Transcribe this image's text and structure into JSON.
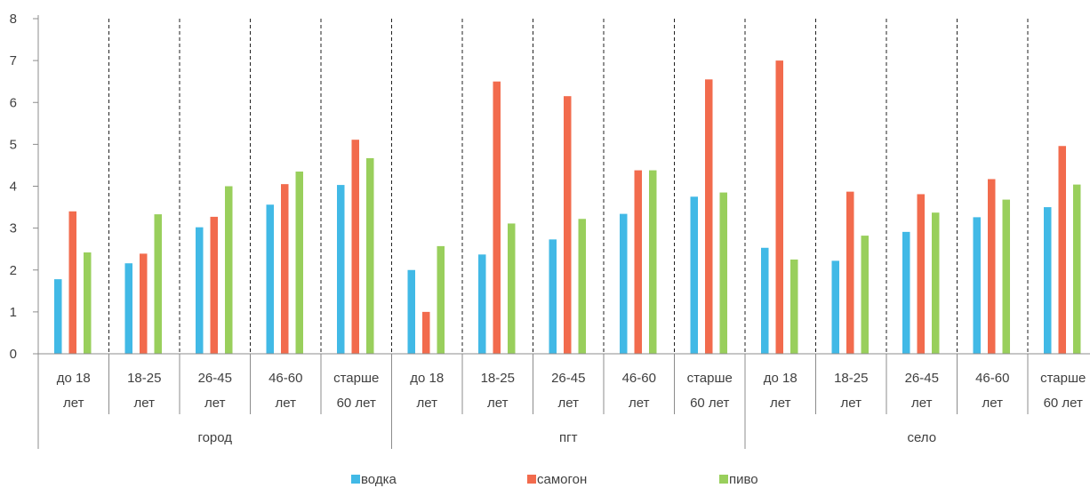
{
  "chart_data": {
    "type": "bar",
    "title": "",
    "xlabel": "",
    "ylabel": "",
    "ylim": [
      0,
      8
    ],
    "yticks": [
      "0",
      "1",
      "2",
      "3",
      "4",
      "5",
      "6",
      "7",
      "8"
    ],
    "grid": false,
    "legend_position": "bottom",
    "groups": [
      {
        "name": "город",
        "categories": [
          [
            "до 18",
            "лет"
          ],
          [
            "18-25",
            "лет"
          ],
          [
            "26-45",
            "лет"
          ],
          [
            "46-60",
            "лет"
          ],
          [
            "старше",
            "60 лет"
          ]
        ]
      },
      {
        "name": "пгт",
        "categories": [
          [
            "до 18",
            "лет"
          ],
          [
            "18-25",
            "лет"
          ],
          [
            "26-45",
            "лет"
          ],
          [
            "46-60",
            "лет"
          ],
          [
            "старше",
            "60 лет"
          ]
        ]
      },
      {
        "name": "село",
        "categories": [
          [
            "до 18",
            "лет"
          ],
          [
            "18-25",
            "лет"
          ],
          [
            "26-45",
            "лет"
          ],
          [
            "46-60",
            "лет"
          ],
          [
            "старше",
            "60 лет"
          ]
        ]
      }
    ],
    "series": [
      {
        "name": "водка",
        "color": "#41b9e6",
        "values": [
          1.78,
          2.16,
          3.02,
          3.56,
          4.03,
          2.0,
          2.37,
          2.73,
          3.34,
          3.75,
          2.53,
          2.22,
          2.91,
          3.26,
          3.5
        ]
      },
      {
        "name": "самогон",
        "color": "#f26b4d",
        "values": [
          3.4,
          2.39,
          3.27,
          4.05,
          5.11,
          1.0,
          6.5,
          6.15,
          4.38,
          6.55,
          7.0,
          3.87,
          3.81,
          4.17,
          4.96
        ]
      },
      {
        "name": "пиво",
        "color": "#99cf5c",
        "values": [
          2.42,
          3.33,
          4.0,
          4.35,
          4.67,
          2.57,
          3.11,
          3.22,
          4.38,
          3.85,
          2.25,
          2.82,
          3.37,
          3.68,
          4.04
        ]
      }
    ]
  }
}
